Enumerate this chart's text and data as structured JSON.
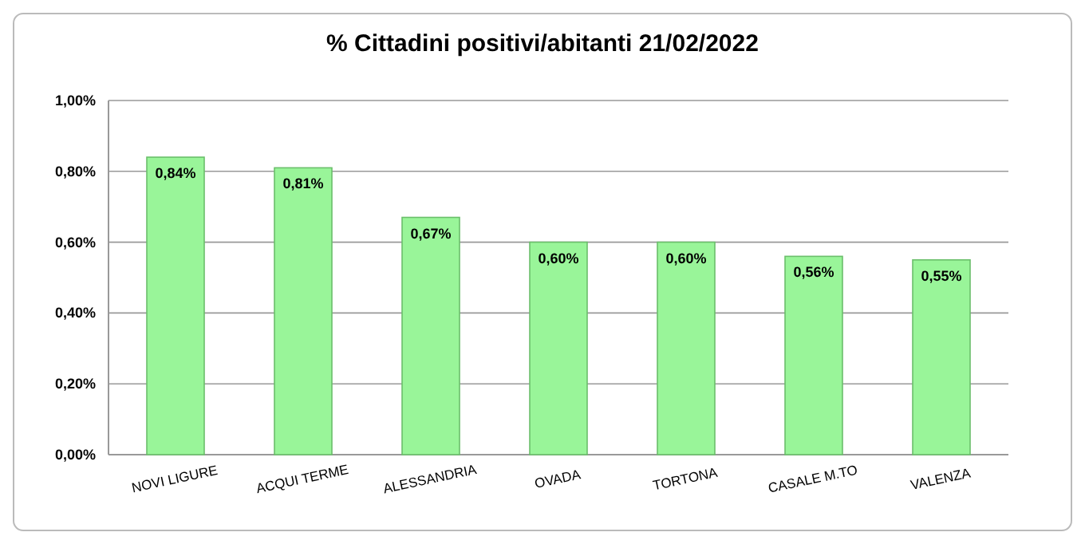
{
  "chart_data": {
    "type": "bar",
    "title": "% Cittadini positivi/abitanti  21/02/2022",
    "categories": [
      "NOVI LIGURE",
      "ACQUI TERME",
      "ALESSANDRIA",
      "OVADA",
      "TORTONA",
      "CASALE M.TO",
      "VALENZA"
    ],
    "values": [
      0.84,
      0.81,
      0.67,
      0.6,
      0.6,
      0.56,
      0.55
    ],
    "value_labels": [
      "0,84%",
      "0,81%",
      "0,67%",
      "0,60%",
      "0,60%",
      "0,56%",
      "0,55%"
    ],
    "color": "#99f599",
    "ylim": [
      0,
      1
    ],
    "yticks": [
      {
        "value": 0,
        "label": "0,00%"
      },
      {
        "value": 0.2,
        "label": "0,20%"
      },
      {
        "value": 0.4,
        "label": "0,40%"
      },
      {
        "value": 0.6,
        "label": "0,60%"
      },
      {
        "value": 0.8,
        "label": "0,80%"
      },
      {
        "value": 1,
        "label": "1,00%"
      }
    ],
    "grid": "y"
  }
}
